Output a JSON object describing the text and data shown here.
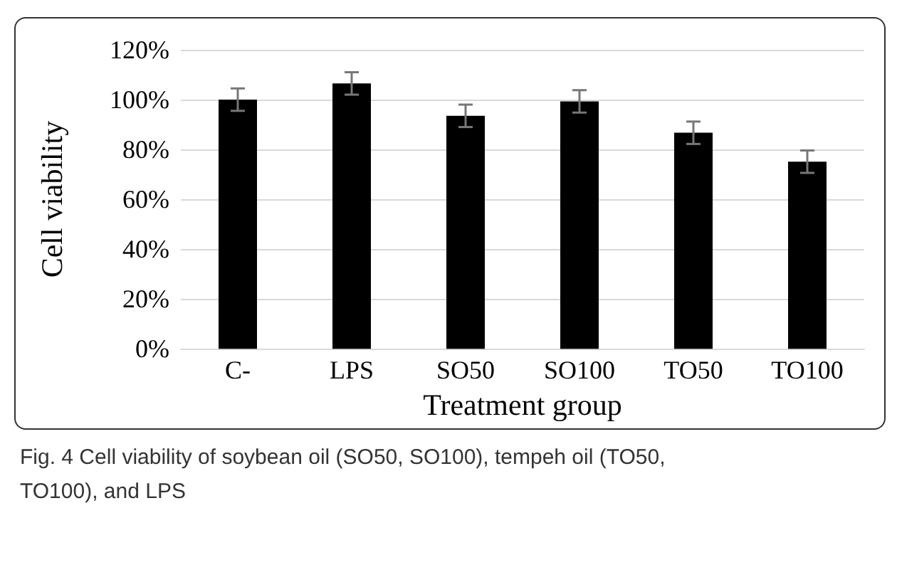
{
  "chart_data": {
    "type": "bar",
    "xlabel": "Treatment group",
    "ylabel": "Cell viability",
    "categories": [
      "C-",
      "LPS",
      "SO50",
      "SO100",
      "TO50",
      "TO100"
    ],
    "values": [
      100,
      106.5,
      93.5,
      99.3,
      86.7,
      75.1
    ],
    "errors": [
      4.5,
      4.5,
      4.5,
      4.5,
      4.5,
      4.5
    ],
    "color": "#000000",
    "ylim": [
      0,
      120
    ],
    "yticks": [
      {
        "value": 0,
        "label": "0%"
      },
      {
        "value": 20,
        "label": "20%"
      },
      {
        "value": 40,
        "label": "40%"
      },
      {
        "value": 60,
        "label": "60%"
      },
      {
        "value": 80,
        "label": "80%"
      },
      {
        "value": 100,
        "label": "100%"
      },
      {
        "value": 120,
        "label": "120%"
      }
    ],
    "grid": "y",
    "annotations": [
      "Fig. 4  Cell viability of soybean oil (SO50, SO100), tempeh oil (TO50, TO100), and LPS"
    ]
  }
}
